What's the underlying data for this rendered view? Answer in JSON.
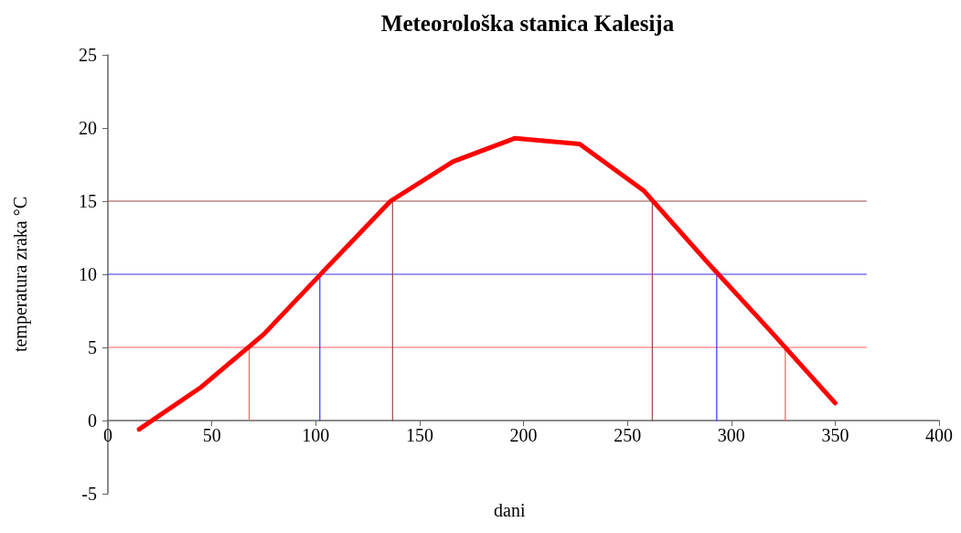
{
  "chart_data": {
    "type": "line",
    "title": "Meteorološka stanica Kalesija",
    "xlabel": "dani",
    "ylabel": "temperatura zraka °C",
    "x": [
      15,
      45,
      75,
      105,
      136,
      166,
      196,
      227,
      258,
      288,
      319,
      350
    ],
    "series": [
      {
        "color": "#ff0000",
        "values": [
          -0.6,
          2.3,
          5.9,
          10.4,
          15.0,
          17.7,
          19.3,
          18.9,
          15.7,
          10.9,
          6.1,
          1.2
        ]
      },
      {
        "color": "#ff6060",
        "x": [
          0,
          365
        ],
        "values": [
          5,
          5
        ]
      },
      {
        "color": "#3333ff",
        "x": [
          0,
          365
        ],
        "values": [
          10,
          10
        ]
      },
      {
        "color": "#a04848",
        "x": [
          0,
          365
        ],
        "values": [
          15,
          15
        ]
      },
      {
        "color": "#ff6060",
        "x": [
          68,
          68
        ],
        "values": [
          0,
          5
        ]
      },
      {
        "color": "#ff6060",
        "x": [
          326,
          326
        ],
        "values": [
          0,
          5
        ]
      },
      {
        "color": "#3333ff",
        "x": [
          102,
          102
        ],
        "values": [
          0,
          10
        ]
      },
      {
        "color": "#3333ff",
        "x": [
          293,
          293
        ],
        "values": [
          0,
          10
        ]
      },
      {
        "color": "#a04848",
        "x": [
          137,
          137
        ],
        "values": [
          0,
          15
        ]
      },
      {
        "color": "#a04848",
        "x": [
          262,
          262
        ],
        "values": [
          0,
          15
        ]
      }
    ],
    "xlim": [
      0,
      400
    ],
    "xticks": [
      0,
      50,
      100,
      150,
      200,
      250,
      300,
      350,
      400
    ],
    "ylim": [
      -5,
      25
    ],
    "yticks": [
      -5,
      0,
      5,
      10,
      15,
      20,
      25
    ],
    "grid": false,
    "marker": "none",
    "line_style": "solid"
  }
}
